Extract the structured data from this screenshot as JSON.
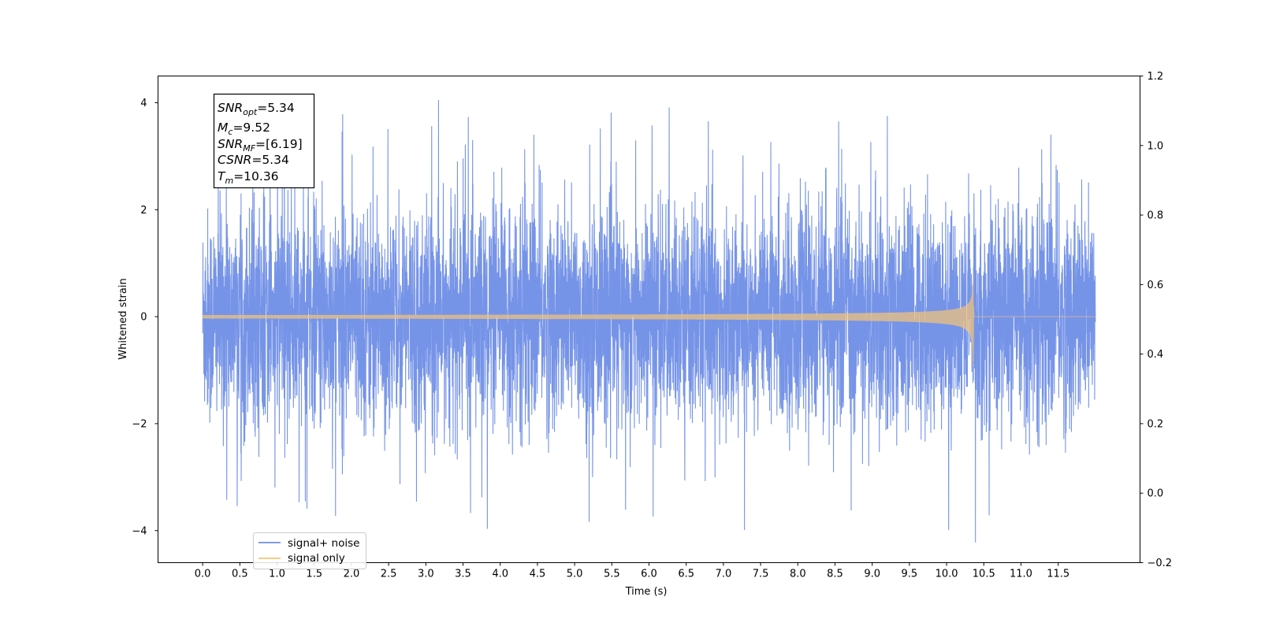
{
  "chart_data": {
    "type": "line",
    "xlabel": "Time (s)",
    "ylabel": "Whitened strain",
    "xlim": [
      -0.6,
      12.6
    ],
    "ylim": [
      -4.6,
      4.5
    ],
    "y2lim": [
      -0.2,
      1.2
    ],
    "xticks": [
      "0.0",
      "0.5",
      "1.0",
      "1.5",
      "2.0",
      "2.5",
      "3.0",
      "3.5",
      "4.0",
      "4.5",
      "5.0",
      "5.5",
      "6.0",
      "6.5",
      "7.0",
      "7.5",
      "8.0",
      "8.5",
      "9.0",
      "9.5",
      "10.0",
      "10.5",
      "11.0",
      "11.5"
    ],
    "yticks": [
      "4",
      "2",
      "0",
      "−2",
      "−4"
    ],
    "y2ticks": [
      "1.2",
      "1.0",
      "0.8",
      "0.6",
      "0.4",
      "0.2",
      "0.0",
      "−0.2"
    ],
    "series": [
      {
        "name": "signal+ noise",
        "color": "#6f8ee6",
        "x_range": [
          0.0,
          12.0
        ],
        "noise_std": 0.95,
        "max": 4.12,
        "min": -4.22
      },
      {
        "name": "signal only",
        "color": "#f5c477",
        "x_range": [
          0.0,
          12.0
        ],
        "merger_time": 10.36,
        "peak_amplitude": 0.81,
        "trough_amplitude": -0.93
      }
    ],
    "legend": {
      "placement": "lower-left",
      "entries": [
        "signal+ noise",
        "signal only"
      ]
    },
    "annotation": {
      "snr_opt": {
        "base": "SNR",
        "sub": "opt",
        "value": "=5.34"
      },
      "mc": {
        "base": "M",
        "sub": "c",
        "value": "=9.52"
      },
      "snr_mf": {
        "base": "SNR",
        "sub": "MF",
        "value": "=[6.19]"
      },
      "csnr": {
        "base": "CSNR",
        "sub": "",
        "value": "=5.34"
      },
      "tm": {
        "base": "T",
        "sub": "m",
        "value": "=10.36"
      }
    },
    "grid": false
  }
}
